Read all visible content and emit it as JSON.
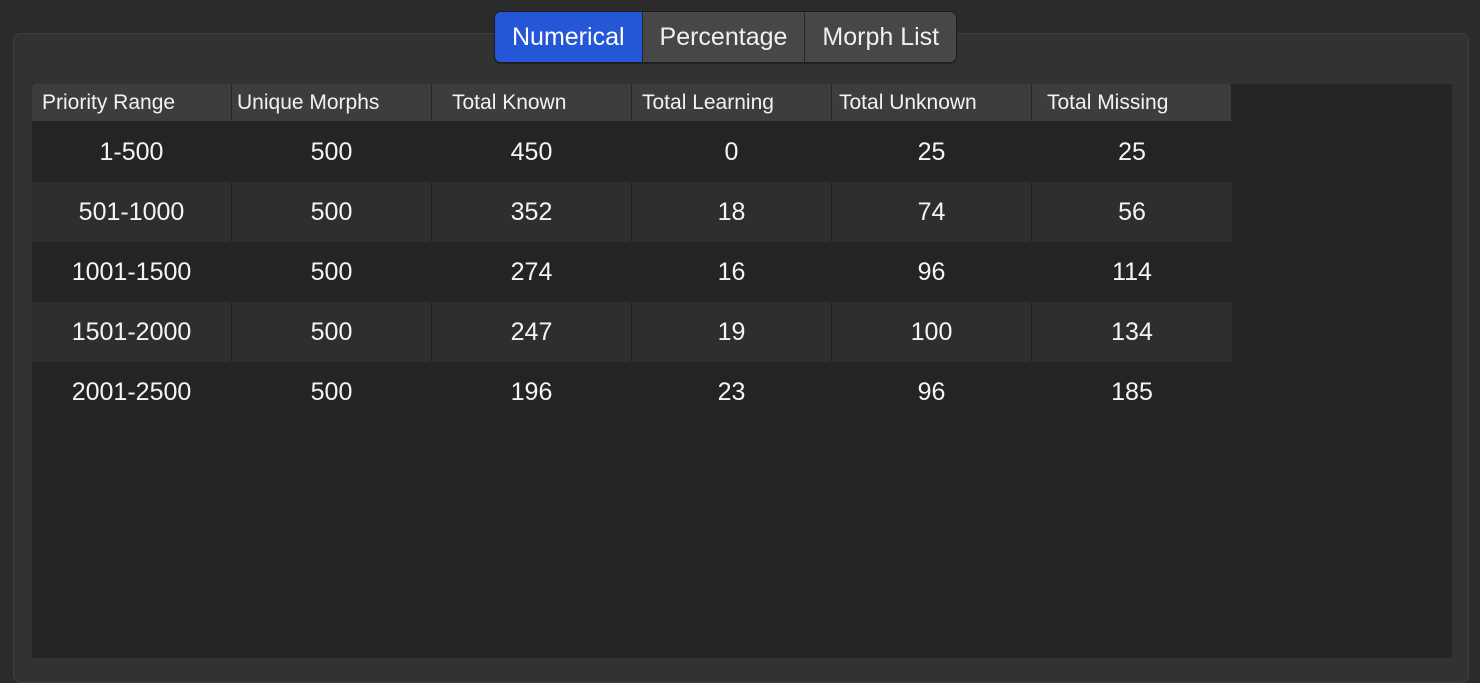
{
  "tabs": [
    {
      "label": "Numerical",
      "active": true
    },
    {
      "label": "Percentage",
      "active": false
    },
    {
      "label": "Morph List",
      "active": false
    }
  ],
  "table": {
    "headers": [
      "Priority Range",
      "Unique Morphs",
      "Total Known",
      "Total Learning",
      "Total Unknown",
      "Total Missing"
    ],
    "rows": [
      [
        "1-500",
        "500",
        "450",
        "0",
        "25",
        "25"
      ],
      [
        "501-1000",
        "500",
        "352",
        "18",
        "74",
        "56"
      ],
      [
        "1001-1500",
        "500",
        "274",
        "16",
        "96",
        "114"
      ],
      [
        "1501-2000",
        "500",
        "247",
        "19",
        "100",
        "134"
      ],
      [
        "2001-2500",
        "500",
        "196",
        "23",
        "96",
        "185"
      ]
    ]
  },
  "colors": {
    "accent": "#2456d6",
    "background": "#2b2b2b",
    "table_background": "#252525"
  }
}
